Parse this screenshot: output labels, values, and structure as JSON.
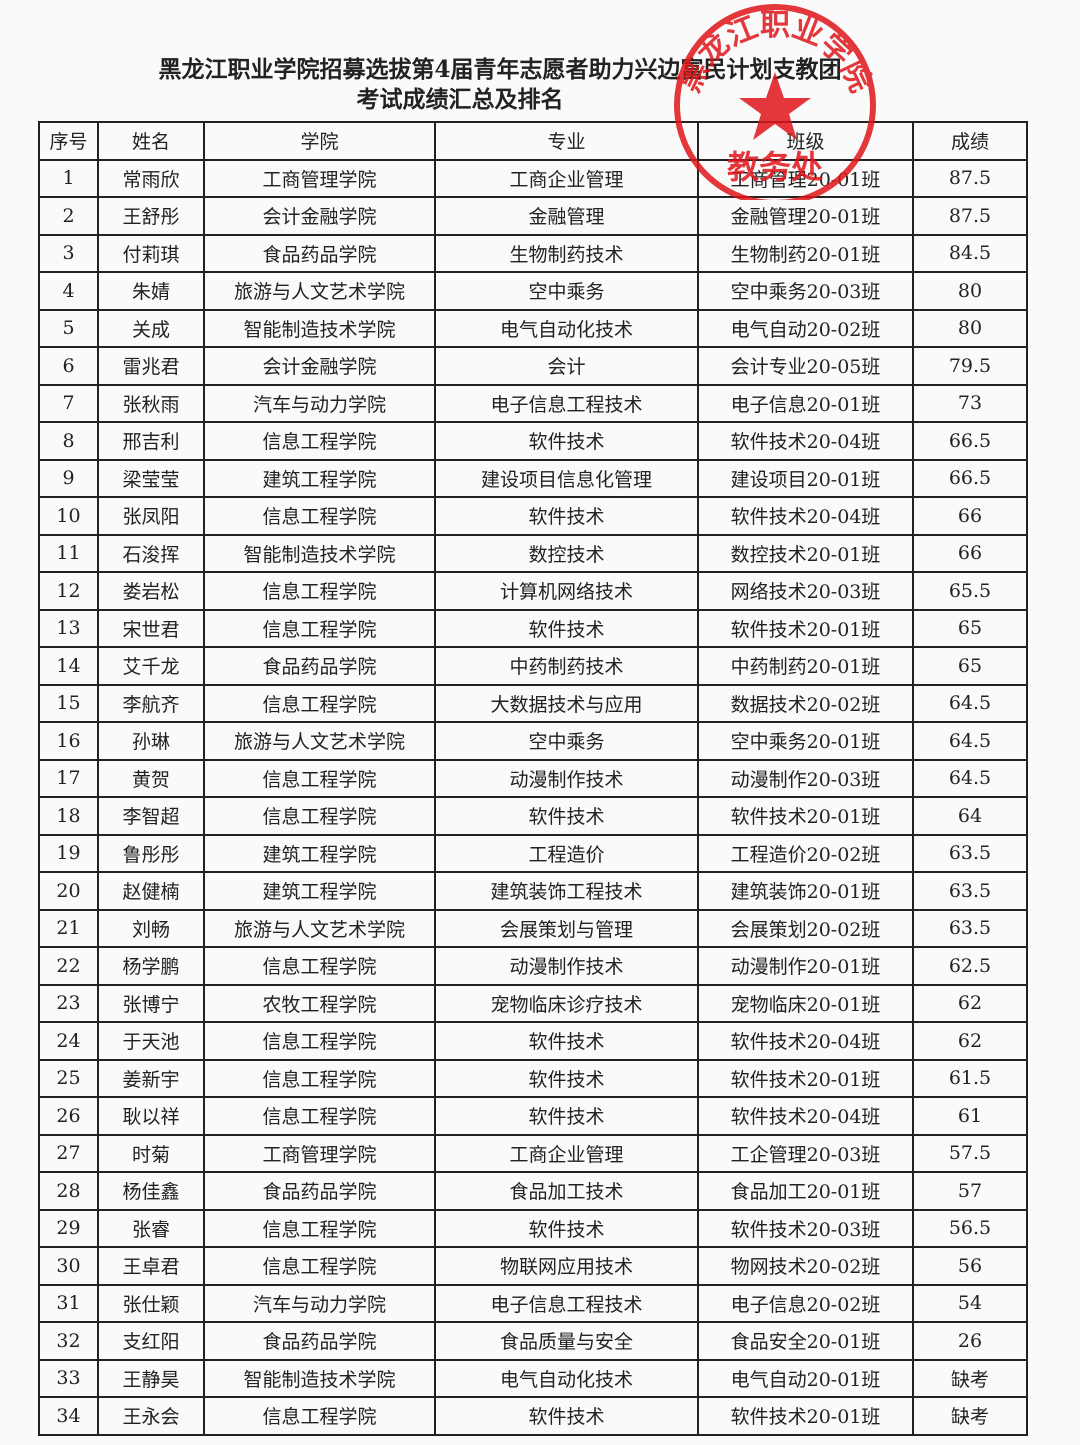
{
  "header": {
    "title": "黑龙江职业学院招募选拔第4届青年志愿者助力兴边富民计划支教团",
    "subtitle": "考试成绩汇总及排名"
  },
  "stamp": {
    "org": "黑龙江职业学院",
    "dept": "教务处"
  },
  "table": {
    "header": [
      "序号",
      "姓名",
      "学院",
      "专业",
      "班级",
      "成绩"
    ],
    "rows": [
      [
        "1",
        "常雨欣",
        "工商管理学院",
        "工商企业管理",
        "工商管理20-01班",
        "87.5"
      ],
      [
        "2",
        "王舒彤",
        "会计金融学院",
        "金融管理",
        "金融管理20-01班",
        "87.5"
      ],
      [
        "3",
        "付莉琪",
        "食品药品学院",
        "生物制药技术",
        "生物制药20-01班",
        "84.5"
      ],
      [
        "4",
        "朱婧",
        "旅游与人文艺术学院",
        "空中乘务",
        "空中乘务20-03班",
        "80"
      ],
      [
        "5",
        "关成",
        "智能制造技术学院",
        "电气自动化技术",
        "电气自动20-02班",
        "80"
      ],
      [
        "6",
        "雷兆君",
        "会计金融学院",
        "会计",
        "会计专业20-05班",
        "79.5"
      ],
      [
        "7",
        "张秋雨",
        "汽车与动力学院",
        "电子信息工程技术",
        "电子信息20-01班",
        "73"
      ],
      [
        "8",
        "邢吉利",
        "信息工程学院",
        "软件技术",
        "软件技术20-04班",
        "66.5"
      ],
      [
        "9",
        "梁莹莹",
        "建筑工程学院",
        "建设项目信息化管理",
        "建设项目20-01班",
        "66.5"
      ],
      [
        "10",
        "张凤阳",
        "信息工程学院",
        "软件技术",
        "软件技术20-04班",
        "66"
      ],
      [
        "11",
        "石浚挥",
        "智能制造技术学院",
        "数控技术",
        "数控技术20-01班",
        "66"
      ],
      [
        "12",
        "娄岩松",
        "信息工程学院",
        "计算机网络技术",
        "网络技术20-03班",
        "65.5"
      ],
      [
        "13",
        "宋世君",
        "信息工程学院",
        "软件技术",
        "软件技术20-01班",
        "65"
      ],
      [
        "14",
        "艾千龙",
        "食品药品学院",
        "中药制药技术",
        "中药制药20-01班",
        "65"
      ],
      [
        "15",
        "李航齐",
        "信息工程学院",
        "大数据技术与应用",
        "数据技术20-02班",
        "64.5"
      ],
      [
        "16",
        "孙琳",
        "旅游与人文艺术学院",
        "空中乘务",
        "空中乘务20-01班",
        "64.5"
      ],
      [
        "17",
        "黄贺",
        "信息工程学院",
        "动漫制作技术",
        "动漫制作20-03班",
        "64.5"
      ],
      [
        "18",
        "李智超",
        "信息工程学院",
        "软件技术",
        "软件技术20-01班",
        "64"
      ],
      [
        "19",
        "鲁彤彤",
        "建筑工程学院",
        "工程造价",
        "工程造价20-02班",
        "63.5"
      ],
      [
        "20",
        "赵健楠",
        "建筑工程学院",
        "建筑装饰工程技术",
        "建筑装饰20-01班",
        "63.5"
      ],
      [
        "21",
        "刘畅",
        "旅游与人文艺术学院",
        "会展策划与管理",
        "会展策划20-02班",
        "63.5"
      ],
      [
        "22",
        "杨学鹏",
        "信息工程学院",
        "动漫制作技术",
        "动漫制作20-01班",
        "62.5"
      ],
      [
        "23",
        "张博宁",
        "农牧工程学院",
        "宠物临床诊疗技术",
        "宠物临床20-01班",
        "62"
      ],
      [
        "24",
        "于天池",
        "信息工程学院",
        "软件技术",
        "软件技术20-04班",
        "62"
      ],
      [
        "25",
        "姜新宇",
        "信息工程学院",
        "软件技术",
        "软件技术20-01班",
        "61.5"
      ],
      [
        "26",
        "耿以祥",
        "信息工程学院",
        "软件技术",
        "软件技术20-04班",
        "61"
      ],
      [
        "27",
        "时菊",
        "工商管理学院",
        "工商企业管理",
        "工企管理20-03班",
        "57.5"
      ],
      [
        "28",
        "杨佳鑫",
        "食品药品学院",
        "食品加工技术",
        "食品加工20-01班",
        "57"
      ],
      [
        "29",
        "张睿",
        "信息工程学院",
        "软件技术",
        "软件技术20-03班",
        "56.5"
      ],
      [
        "30",
        "王卓君",
        "信息工程学院",
        "物联网应用技术",
        "物网技术20-02班",
        "56"
      ],
      [
        "31",
        "张仕颖",
        "汽车与动力学院",
        "电子信息工程技术",
        "电子信息20-02班",
        "54"
      ],
      [
        "32",
        "支红阳",
        "食品药品学院",
        "食品质量与安全",
        "食品安全20-01班",
        "26"
      ],
      [
        "33",
        "王静昊",
        "智能制造技术学院",
        "电气自动化技术",
        "电气自动20-01班",
        "缺考"
      ],
      [
        "34",
        "王永会",
        "信息工程学院",
        "软件技术",
        "软件技术20-01班",
        "缺考"
      ]
    ]
  }
}
